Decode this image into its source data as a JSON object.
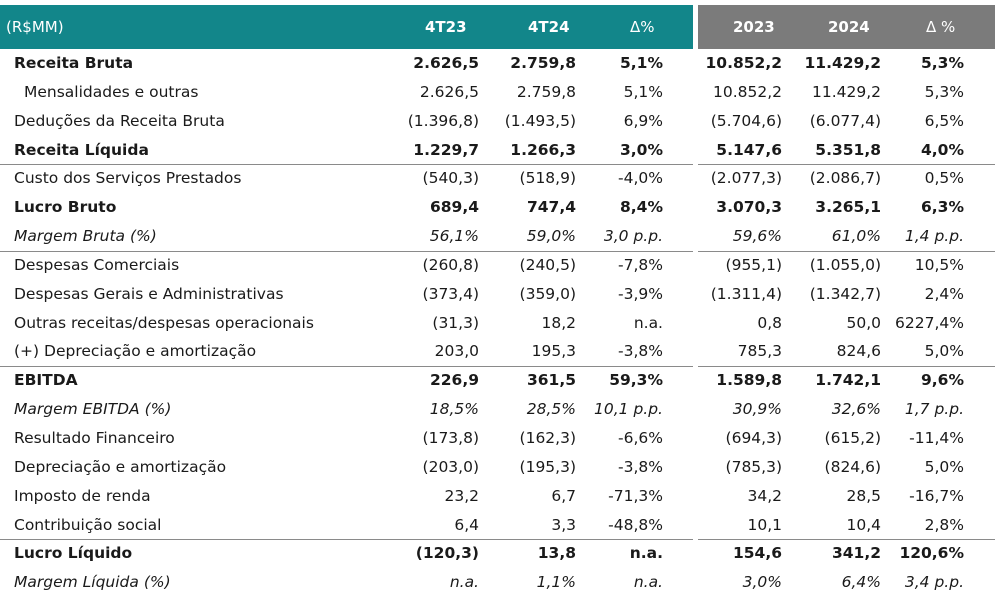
{
  "header": {
    "unit": "(R$MM)",
    "col_4t23": "4T23",
    "col_4t24": "4T24",
    "col_delta_q": "Δ%",
    "col_2023": "2023",
    "col_2024": "2024",
    "col_delta_y": "Δ %"
  },
  "rows": [
    {
      "label": "Receita Bruta",
      "v": [
        "2.626,5",
        "2.759,8",
        "5,1%",
        "10.852,2",
        "11.429,2",
        "5,3%"
      ]
    },
    {
      "label": "Mensalidades e outras",
      "v": [
        "2.626,5",
        "2.759,8",
        "5,1%",
        "10.852,2",
        "11.429,2",
        "5,3%"
      ]
    },
    {
      "label": "Deduções da Receita Bruta",
      "v": [
        "(1.396,8)",
        "(1.493,5)",
        "6,9%",
        "(5.704,6)",
        "(6.077,4)",
        "6,5%"
      ]
    },
    {
      "label": "Receita Líquida",
      "v": [
        "1.229,7",
        "1.266,3",
        "3,0%",
        "5.147,6",
        "5.351,8",
        "4,0%"
      ]
    },
    {
      "label": "Custo dos Serviços Prestados",
      "v": [
        "(540,3)",
        "(518,9)",
        "-4,0%",
        "(2.077,3)",
        "(2.086,7)",
        "0,5%"
      ]
    },
    {
      "label": "Lucro Bruto",
      "v": [
        "689,4",
        "747,4",
        "8,4%",
        "3.070,3",
        "3.265,1",
        "6,3%"
      ]
    },
    {
      "label": "Margem Bruta (%)",
      "v": [
        "56,1%",
        "59,0%",
        "3,0 p.p.",
        "59,6%",
        "61,0%",
        "1,4 p.p."
      ]
    },
    {
      "label": "Despesas Comerciais",
      "v": [
        "(260,8)",
        "(240,5)",
        "-7,8%",
        "(955,1)",
        "(1.055,0)",
        "10,5%"
      ]
    },
    {
      "label": "Despesas Gerais e Administrativas",
      "v": [
        "(373,4)",
        "(359,0)",
        "-3,9%",
        "(1.311,4)",
        "(1.342,7)",
        "2,4%"
      ]
    },
    {
      "label": "Outras receitas/despesas operacionais",
      "v": [
        "(31,3)",
        "18,2",
        "n.a.",
        "0,8",
        "50,0",
        "6227,4%"
      ]
    },
    {
      "label": "(+) Depreciação e amortização",
      "v": [
        "203,0",
        "195,3",
        "-3,8%",
        "785,3",
        "824,6",
        "5,0%"
      ]
    },
    {
      "label": "EBITDA",
      "v": [
        "226,9",
        "361,5",
        "59,3%",
        "1.589,8",
        "1.742,1",
        "9,6%"
      ]
    },
    {
      "label": "Margem EBITDA (%)",
      "v": [
        "18,5%",
        "28,5%",
        "10,1 p.p.",
        "30,9%",
        "32,6%",
        "1,7 p.p."
      ]
    },
    {
      "label": "Resultado Financeiro",
      "v": [
        "(173,8)",
        "(162,3)",
        "-6,6%",
        "(694,3)",
        "(615,2)",
        "-11,4%"
      ]
    },
    {
      "label": "Depreciação e amortização",
      "v": [
        "(203,0)",
        "(195,3)",
        "-3,8%",
        "(785,3)",
        "(824,6)",
        "5,0%"
      ]
    },
    {
      "label": "Imposto de renda",
      "v": [
        "23,2",
        "6,7",
        "-71,3%",
        "34,2",
        "28,5",
        "-16,7%"
      ]
    },
    {
      "label": "Contribuição social",
      "v": [
        "6,4",
        "3,3",
        "-48,8%",
        "10,1",
        "10,4",
        "2,8%"
      ]
    },
    {
      "label": "Lucro Líquido",
      "v": [
        "(120,3)",
        "13,8",
        "n.a.",
        "154,6",
        "341,2",
        "120,6%"
      ]
    },
    {
      "label": "Margem Líquida (%)",
      "v": [
        "n.a.",
        "1,1%",
        "n.a.",
        "3,0%",
        "6,4%",
        "3,4 p.p."
      ]
    }
  ],
  "colors": {
    "header_teal": "#12868a",
    "header_gray": "#7b7b7b"
  }
}
